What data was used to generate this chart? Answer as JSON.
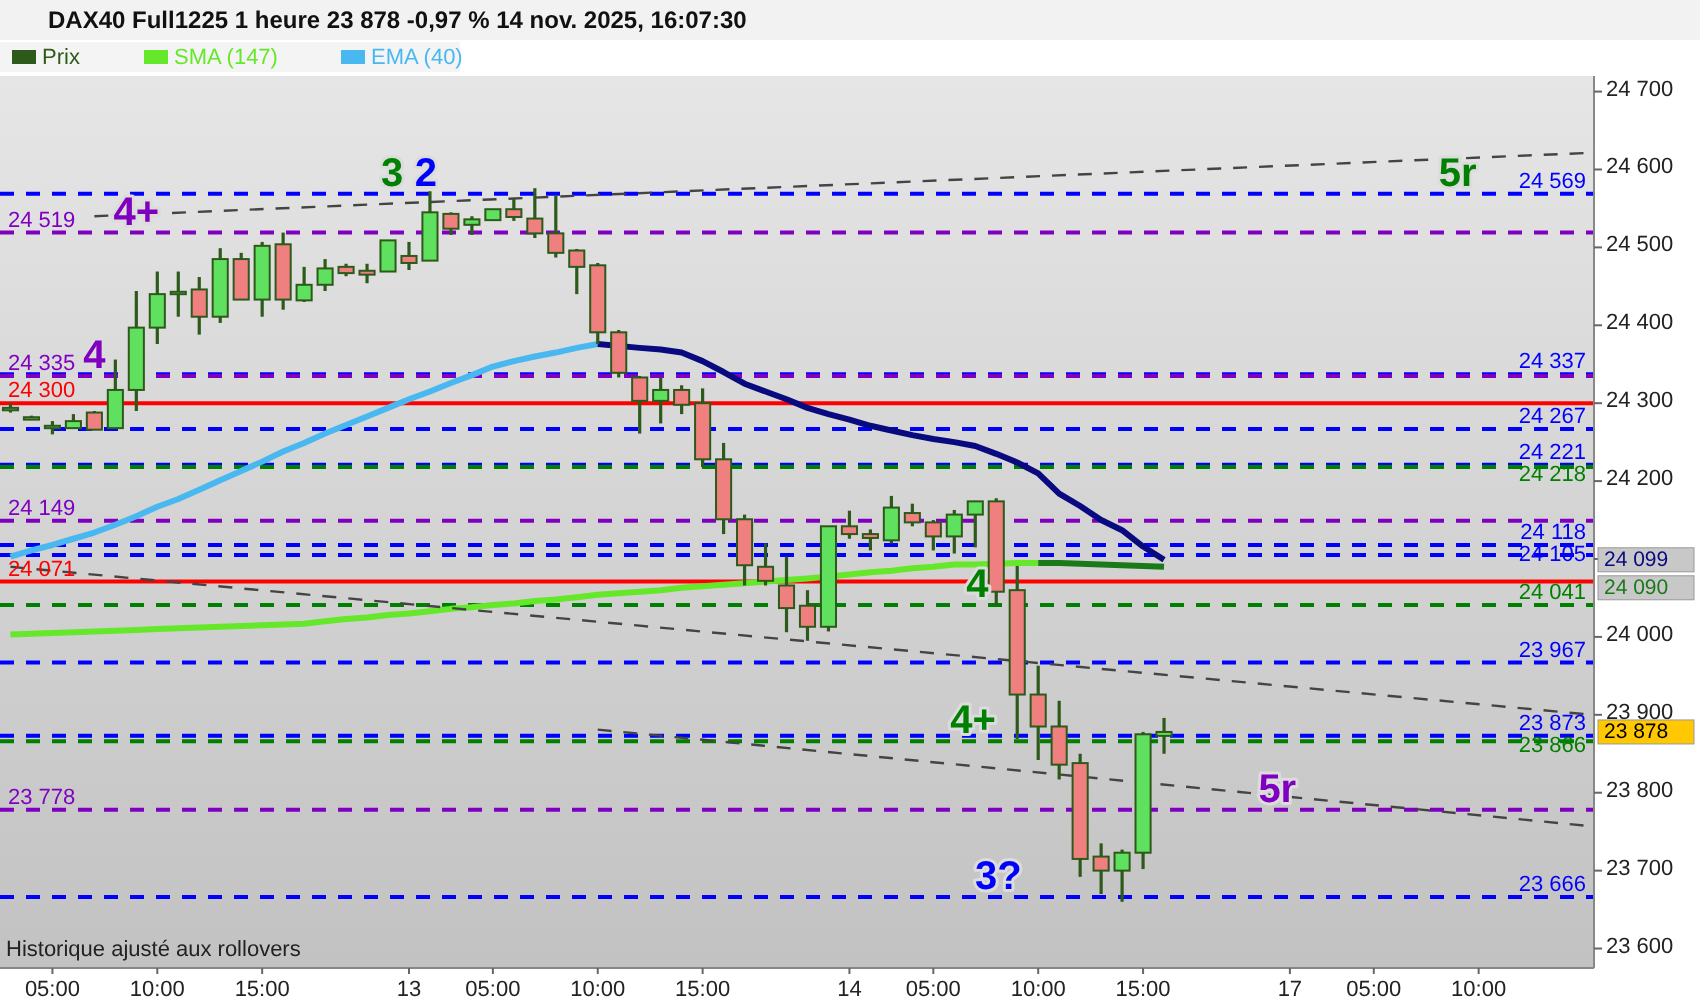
{
  "chart_data": {
    "type": "candlestick",
    "title": "DAX40 Full1225 1 heure 23 878 -0,97 % 14 nov. 2025, 16:07:30",
    "categories": [
      null,
      null,
      "05:00",
      null,
      null,
      null,
      null,
      "10:00",
      null,
      null,
      null,
      null,
      "15:00",
      null,
      null,
      null,
      null,
      null,
      null,
      "13",
      null,
      null,
      null,
      "05:00",
      null,
      null,
      null,
      null,
      "10:00",
      null,
      null,
      null,
      null,
      "15:00",
      null,
      null,
      null,
      null,
      null,
      null,
      "14",
      null,
      null,
      null,
      "05:00",
      null,
      null,
      null,
      null,
      "10:00",
      null,
      null,
      null,
      null,
      "15:00",
      null,
      null,
      null,
      null,
      null,
      null,
      "17",
      null,
      null,
      null,
      "05:00",
      null,
      null,
      null,
      null,
      "10:00",
      null,
      null,
      null,
      null,
      null
    ],
    "ylim": [
      23575,
      24720
    ],
    "yticks": [
      {
        "value": 23600,
        "label": "23 600"
      },
      {
        "value": 23700,
        "label": "23 700"
      },
      {
        "value": 23800,
        "label": "23 800"
      },
      {
        "value": 23900,
        "label": "23 900"
      },
      {
        "value": 24000,
        "label": "24 000"
      },
      {
        "value": 24100,
        "label": null
      },
      {
        "value": 24200,
        "label": "24 200"
      },
      {
        "value": 24300,
        "label": "24 300"
      },
      {
        "value": 24400,
        "label": "24 400"
      },
      {
        "value": 24500,
        "label": "24 500"
      },
      {
        "value": 24600,
        "label": "24 600"
      },
      {
        "value": 24700,
        "label": "24 700"
      }
    ],
    "legend": "top left",
    "series": [
      {
        "name": "Prix",
        "color": "#2d5a1b",
        "ohlc": [
          [
            24293,
            24300,
            24288,
            24294
          ],
          [
            24282,
            24284,
            24280,
            24282
          ],
          [
            24271,
            24277,
            24260,
            24271
          ],
          [
            24268,
            24286,
            24268,
            24277
          ],
          [
            24288,
            24290,
            24266,
            24266
          ],
          [
            24268,
            24356,
            24268,
            24317
          ],
          [
            24317,
            24444,
            24290,
            24397
          ],
          [
            24397,
            24469,
            24376,
            24440
          ],
          [
            24442,
            24469,
            24411,
            24443
          ],
          [
            24446,
            24462,
            24388,
            24411
          ],
          [
            24411,
            24499,
            24403,
            24485
          ],
          [
            24485,
            24493,
            24433,
            24433
          ],
          [
            24433,
            24507,
            24411,
            24502
          ],
          [
            24504,
            24519,
            24420,
            24433
          ],
          [
            24432,
            24475,
            24430,
            24452
          ],
          [
            24452,
            24485,
            24444,
            24473
          ],
          [
            24475,
            24479,
            24463,
            24467
          ],
          [
            24470,
            24479,
            24454,
            24465
          ],
          [
            24469,
            24509,
            24469,
            24509
          ],
          [
            24489,
            24507,
            24471,
            24480
          ],
          [
            24483,
            24572,
            24483,
            24545
          ],
          [
            24543,
            24545,
            24516,
            24524
          ],
          [
            24529,
            24540,
            24516,
            24536
          ],
          [
            24535,
            24549,
            24535,
            24549
          ],
          [
            24549,
            24562,
            24534,
            24539
          ],
          [
            24537,
            24576,
            24512,
            24518
          ],
          [
            24518,
            24567,
            24487,
            24493
          ],
          [
            24496,
            24498,
            24440,
            24475
          ],
          [
            24477,
            24480,
            24376,
            24391
          ],
          [
            24391,
            24394,
            24333,
            24339
          ],
          [
            24333,
            24335,
            24261,
            24303
          ],
          [
            24303,
            24333,
            24274,
            24317
          ],
          [
            24317,
            24323,
            24286,
            24298
          ],
          [
            24300,
            24319,
            24218,
            24228
          ],
          [
            24228,
            24249,
            24132,
            24151
          ],
          [
            24151,
            24157,
            24066,
            24092
          ],
          [
            24090,
            24120,
            24066,
            24072
          ],
          [
            24066,
            24103,
            24006,
            24037
          ],
          [
            24040,
            24060,
            23995,
            24013
          ],
          [
            24013,
            24142,
            24007,
            24142
          ],
          [
            24142,
            24162,
            24126,
            24132
          ],
          [
            24132,
            24138,
            24111,
            24127
          ],
          [
            24124,
            24181,
            24120,
            24166
          ],
          [
            24159,
            24171,
            24142,
            24147
          ],
          [
            24147,
            24150,
            24111,
            24129
          ],
          [
            24129,
            24163,
            24107,
            24157
          ],
          [
            24157,
            24174,
            24115,
            24174
          ],
          [
            24174,
            24178,
            24041,
            24058
          ],
          [
            24060,
            24091,
            23869,
            23926
          ],
          [
            23926,
            23963,
            23842,
            23885
          ],
          [
            23885,
            23918,
            23817,
            23836
          ],
          [
            23838,
            23850,
            23692,
            23715
          ],
          [
            23718,
            23735,
            23670,
            23700
          ],
          [
            23700,
            23727,
            23660,
            23723
          ],
          [
            23723,
            23878,
            23702,
            23875
          ],
          [
            23873,
            23896,
            23850,
            23878
          ],
          null,
          null,
          null,
          null,
          null,
          null,
          null,
          null,
          null,
          null,
          null,
          null,
          null,
          null,
          null,
          null,
          null,
          null,
          null,
          null
        ]
      },
      {
        "name": "SMA (147)",
        "type": "line",
        "color": "#66e82a",
        "values": [
          24003,
          24004,
          24005,
          24006,
          24007,
          24008,
          24009,
          24010,
          24011,
          24012,
          24013,
          24014,
          24015,
          24016,
          24017,
          24020,
          24023,
          24025,
          24028,
          24030,
          24033,
          24036,
          24038,
          24041,
          24043,
          24046,
          24048,
          24051,
          24054,
          24056,
          24058,
          24060,
          24063,
          24065,
          24067,
          24069,
          24071,
          24073,
          24075,
          null,
          24080,
          24083,
          24085,
          24088,
          24090,
          24093,
          24093,
          null,
          24095,
          24095,
          null,
          null,
          null,
          null,
          null,
          null,
          null,
          null,
          null,
          null,
          null,
          null,
          null,
          null,
          null,
          null,
          null,
          null,
          null,
          null,
          null,
          null,
          null,
          null,
          null,
          null
        ]
      },
      {
        "type": "line",
        "color": "#1a7a1a",
        "values": [
          null,
          null,
          null,
          null,
          null,
          null,
          null,
          null,
          null,
          null,
          null,
          null,
          null,
          null,
          null,
          null,
          null,
          null,
          null,
          null,
          null,
          null,
          null,
          null,
          null,
          null,
          null,
          null,
          null,
          null,
          null,
          null,
          null,
          null,
          null,
          null,
          null,
          null,
          null,
          null,
          null,
          null,
          null,
          null,
          null,
          null,
          null,
          null,
          null,
          24095,
          24095,
          24094,
          24093,
          24092,
          24091,
          24090,
          null,
          null,
          null,
          null,
          null,
          null,
          null,
          null,
          null,
          null,
          null,
          null,
          null,
          null,
          null,
          null,
          null,
          null,
          null,
          null
        ]
      },
      {
        "name": "EMA (40)",
        "type": "line",
        "color": "#4ab8f0",
        "values": [
          24103,
          24111,
          24118,
          24126,
          24134,
          24144,
          24155,
          24167,
          24177,
          24189,
          24201,
          24213,
          24225,
          24238,
          24249,
          24261,
          24272,
          24283,
          24294,
          24305,
          24315,
          24326,
          24336,
          24347,
          24354,
          24360,
          24365,
          24371,
          24376,
          null,
          null,
          null,
          null,
          null,
          null,
          null,
          null,
          null,
          null,
          null,
          null,
          null,
          null,
          null,
          null,
          null,
          null,
          null,
          null,
          null,
          null,
          null,
          null,
          null,
          null,
          null,
          null,
          null,
          null,
          null,
          null,
          null,
          null,
          null,
          null,
          null,
          null,
          null,
          null,
          null,
          null,
          null,
          null,
          null,
          null,
          null
        ]
      },
      {
        "type": "line",
        "color": "#0a0a80",
        "values": [
          null,
          null,
          null,
          null,
          null,
          null,
          null,
          null,
          null,
          null,
          null,
          null,
          null,
          null,
          null,
          null,
          null,
          null,
          null,
          null,
          null,
          null,
          null,
          null,
          null,
          null,
          null,
          null,
          24376,
          null,
          24371,
          24369,
          24365,
          24354,
          24340,
          24325,
          24315,
          24305,
          24294,
          24286,
          24279,
          24271,
          24265,
          24259,
          24254,
          24250,
          24245,
          24235,
          24224,
          24210,
          24184,
          24168,
          24150,
          24137,
          24116,
          24099,
          null,
          null,
          null,
          null,
          null,
          null,
          null,
          null,
          null,
          null,
          null,
          null,
          null,
          null,
          null,
          null,
          null,
          null,
          null,
          null
        ]
      },
      {
        "type": "line",
        "color": "#444444",
        "line_style": "dashed",
        "values": [
          null,
          null,
          null,
          null,
          24540,
          null,
          null,
          null,
          null,
          null,
          null,
          null,
          null,
          null,
          null,
          null,
          null,
          null,
          null,
          null,
          null,
          null,
          null,
          null,
          null,
          null,
          null,
          null,
          null,
          null,
          null,
          null,
          null,
          null,
          null,
          null,
          null,
          null,
          null,
          null,
          null,
          null,
          null,
          null,
          null,
          null,
          null,
          null,
          null,
          null,
          null,
          null,
          null,
          null,
          null,
          null,
          null,
          null,
          null,
          null,
          null,
          null,
          null,
          null,
          null,
          null,
          null,
          null,
          null,
          null,
          null,
          null,
          null,
          null,
          null,
          24621
        ]
      },
      {
        "type": "line",
        "color": "#444444",
        "line_style": "dashed",
        "values": [
          24090,
          null,
          null,
          null,
          null,
          null,
          null,
          null,
          null,
          null,
          null,
          null,
          null,
          null,
          null,
          null,
          null,
          null,
          null,
          null,
          null,
          null,
          null,
          null,
          null,
          null,
          null,
          null,
          null,
          null,
          null,
          null,
          null,
          null,
          null,
          null,
          null,
          null,
          null,
          null,
          null,
          null,
          null,
          null,
          null,
          null,
          null,
          null,
          null,
          null,
          null,
          null,
          null,
          null,
          null,
          null,
          null,
          null,
          null,
          null,
          null,
          null,
          null,
          null,
          null,
          null,
          null,
          null,
          null,
          null,
          null,
          null,
          null,
          null,
          null,
          23901
        ]
      },
      {
        "type": "line",
        "color": "#444444",
        "line_style": "dashed",
        "values": [
          null,
          null,
          null,
          null,
          null,
          null,
          null,
          null,
          null,
          null,
          null,
          null,
          null,
          null,
          null,
          null,
          null,
          null,
          null,
          null,
          null,
          null,
          null,
          null,
          null,
          null,
          null,
          null,
          23881,
          null,
          null,
          null,
          null,
          null,
          null,
          null,
          null,
          null,
          null,
          null,
          null,
          null,
          null,
          null,
          null,
          null,
          null,
          null,
          null,
          null,
          null,
          null,
          null,
          null,
          null,
          null,
          null,
          null,
          null,
          null,
          null,
          null,
          null,
          null,
          null,
          null,
          null,
          null,
          null,
          null,
          null,
          null,
          null,
          null,
          null,
          23758
        ]
      }
    ],
    "ref_lines": [
      {
        "axis": "y",
        "value": 24569,
        "label": "24 569",
        "color": "#0000ff",
        "line_style": "dashed"
      },
      {
        "axis": "y",
        "value": 24519,
        "label": "24 519",
        "color": "#8000c0",
        "line_style": "dashed"
      },
      {
        "axis": "y",
        "value": 24337,
        "label": "24 337",
        "color": "#0000ff",
        "line_style": "dashed"
      },
      {
        "axis": "y",
        "value": 24335,
        "label": "24 335",
        "color": "#8000c0",
        "line_style": "dashed"
      },
      {
        "axis": "y",
        "value": 24300,
        "label": "24 300",
        "color": "#ff0000",
        "line_style": "solid"
      },
      {
        "axis": "y",
        "value": 24267,
        "label": "24 267",
        "color": "#0000ff",
        "line_style": "dashed"
      },
      {
        "axis": "y",
        "value": 24221,
        "label": "24 221",
        "color": "#0000ff",
        "line_style": "dashed"
      },
      {
        "axis": "y",
        "value": 24218,
        "label": "24 218",
        "color": "#008000",
        "line_style": "dashed"
      },
      {
        "axis": "y",
        "value": 24149,
        "label": "24 149",
        "color": "#8000c0",
        "line_style": "dashed"
      },
      {
        "axis": "y",
        "value": 24118,
        "label": "24 118",
        "color": "#0000ff",
        "line_style": "dashed"
      },
      {
        "axis": "y",
        "value": 24105,
        "label": "24 105",
        "color": "#0000ff",
        "line_style": "dashed"
      },
      {
        "axis": "y",
        "value": 24071,
        "label": "24 071",
        "color": "#ff0000",
        "line_style": "solid"
      },
      {
        "axis": "y",
        "value": 24041,
        "label": "24 041",
        "color": "#008000",
        "line_style": "dashed"
      },
      {
        "axis": "y",
        "value": 23967,
        "label": "23 967",
        "color": "#0000ff",
        "line_style": "dashed"
      },
      {
        "axis": "y",
        "value": 23873,
        "label": "23 873",
        "color": "#0000ff",
        "line_style": "dashed"
      },
      {
        "axis": "y",
        "value": 23866,
        "label": "23 866",
        "color": "#008000",
        "line_style": "dashed"
      },
      {
        "axis": "y",
        "value": 23778,
        "label": "23 778",
        "color": "#8000c0",
        "line_style": "dashed"
      },
      {
        "axis": "y",
        "value": 23666,
        "label": "23 666",
        "color": "#0000ff",
        "line_style": "dashed"
      }
    ],
    "annotations": [
      {
        "text": "4+",
        "y": 24519
      },
      {
        "text": "4",
        "y": 24335
      },
      {
        "text": "3",
        "y": 24569
      },
      {
        "text": "2",
        "y": 24569
      },
      {
        "text": "4",
        "y": 24041
      },
      {
        "text": "4+",
        "y": 23866
      },
      {
        "text": "3?",
        "y": 23666
      },
      {
        "text": "5r",
        "y": 23778
      },
      {
        "text": "5r",
        "y": 24569
      },
      "24 099",
      "24 090",
      "23 878",
      "Historique ajusté aux rollovers"
    ]
  }
}
